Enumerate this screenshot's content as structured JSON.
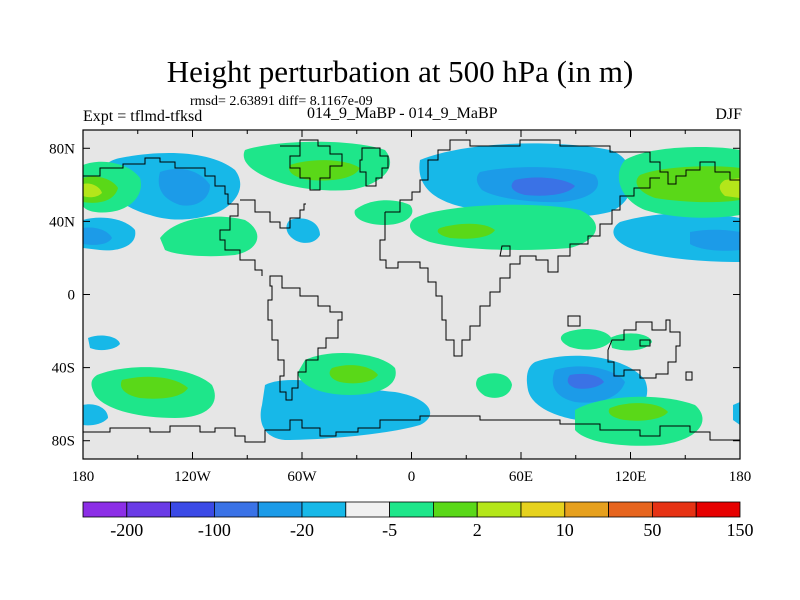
{
  "title": "Height perturbation at 500 hPa (in m)",
  "stats": "rmsd= 2.63891 diff= 8.1167e-09",
  "expt": "Expt = tflmd-tfksd",
  "runs": "014_9_MaBP - 014_9_MaBP",
  "season": "DJF",
  "map": {
    "lon_range": [
      -180,
      180
    ],
    "lat_range": [
      -90,
      90
    ],
    "lat_ticks": [
      {
        "value": 80,
        "label": "80N"
      },
      {
        "value": 40,
        "label": "40N"
      },
      {
        "value": 0,
        "label": "0"
      },
      {
        "value": -40,
        "label": "40S"
      },
      {
        "value": -80,
        "label": "80S"
      }
    ],
    "lon_ticks": [
      {
        "value": -180,
        "label": "180"
      },
      {
        "value": -120,
        "label": "120W"
      },
      {
        "value": -60,
        "label": "60W"
      },
      {
        "value": 0,
        "label": "0"
      },
      {
        "value": 60,
        "label": "60E"
      },
      {
        "value": 120,
        "label": "120E"
      },
      {
        "value": 180,
        "label": "180"
      }
    ],
    "background_color": "#e6e6e6"
  },
  "colorbar": {
    "colors": [
      "#8c2ee6",
      "#6a3be6",
      "#3b4ae6",
      "#3a72e6",
      "#1c9be8",
      "#17b8e8",
      "#f0f0f0",
      "#1ee68a",
      "#5ad818",
      "#b4e61a",
      "#e6d21e",
      "#e6a01e",
      "#e6641e",
      "#e63214",
      "#e60000"
    ],
    "labels": [
      "-200",
      "-100",
      "-20",
      "-5",
      "2",
      "10",
      "50",
      "150"
    ]
  },
  "legend_levels": {
    "light_blue": "#17b8e8",
    "blue": "#1c9be8",
    "dark_blue": "#3a72e6",
    "light_green": "#1ee68a",
    "green": "#5ad818",
    "yellow_green": "#b4e61a"
  }
}
